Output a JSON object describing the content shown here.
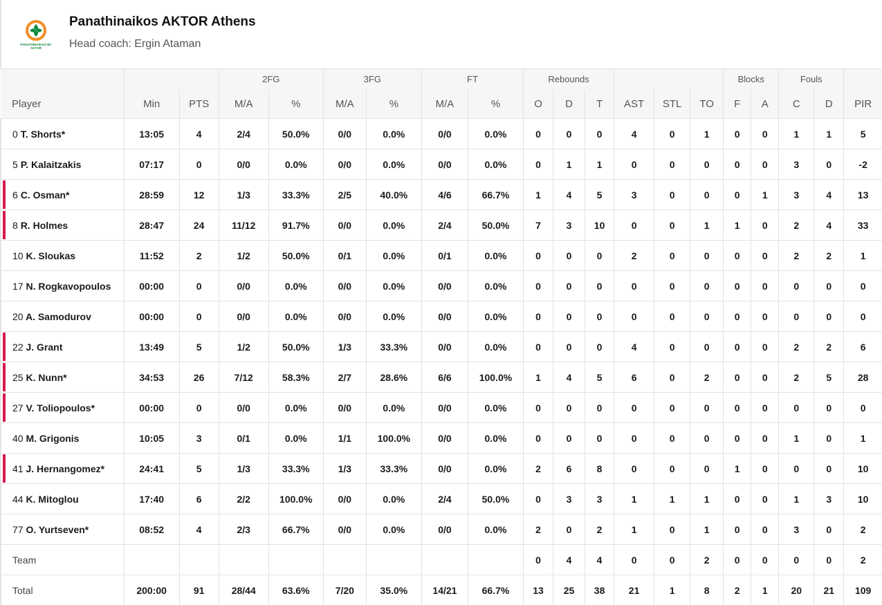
{
  "team": {
    "name": "Panathinaikos AKTOR Athens",
    "coach": "Head coach: Ergin Ataman",
    "logo_text_1": "PANATHINAIKOS BC",
    "logo_text_2": "AKTOR",
    "colors": {
      "accent": "#d7184f",
      "logo_green": "#0d8a3c",
      "logo_orange": "#f28c28"
    }
  },
  "table": {
    "groups": {
      "fg2": "2FG",
      "fg3": "3FG",
      "ft": "FT",
      "reb": "Rebounds",
      "blk": "Blocks",
      "fouls": "Fouls"
    },
    "headers": {
      "player": "Player",
      "min": "Min",
      "pts": "PTS",
      "fg2_ma": "M/A",
      "fg2_pct": "%",
      "fg3_ma": "M/A",
      "fg3_pct": "%",
      "ft_ma": "M/A",
      "ft_pct": "%",
      "o": "O",
      "d": "D",
      "t": "T",
      "ast": "AST",
      "stl": "STL",
      "to": "TO",
      "bf": "F",
      "ba": "A",
      "fc": "C",
      "fd": "D",
      "pir": "PIR"
    },
    "rows": [
      {
        "num": "0",
        "name": "T. Shorts*",
        "oncourt": false,
        "min": "13:05",
        "pts": "4",
        "fg2": "2/4",
        "fg2p": "50.0%",
        "fg3": "0/0",
        "fg3p": "0.0%",
        "ft": "0/0",
        "ftp": "0.0%",
        "o": "0",
        "d": "0",
        "t": "0",
        "ast": "4",
        "stl": "0",
        "to": "1",
        "bf": "0",
        "ba": "0",
        "fc": "1",
        "fd": "1",
        "pir": "5"
      },
      {
        "num": "5",
        "name": "P. Kalaitzakis",
        "oncourt": false,
        "min": "07:17",
        "pts": "0",
        "fg2": "0/0",
        "fg2p": "0.0%",
        "fg3": "0/0",
        "fg3p": "0.0%",
        "ft": "0/0",
        "ftp": "0.0%",
        "o": "0",
        "d": "1",
        "t": "1",
        "ast": "0",
        "stl": "0",
        "to": "0",
        "bf": "0",
        "ba": "0",
        "fc": "3",
        "fd": "0",
        "pir": "-2"
      },
      {
        "num": "6",
        "name": "C. Osman*",
        "oncourt": true,
        "min": "28:59",
        "pts": "12",
        "fg2": "1/3",
        "fg2p": "33.3%",
        "fg3": "2/5",
        "fg3p": "40.0%",
        "ft": "4/6",
        "ftp": "66.7%",
        "o": "1",
        "d": "4",
        "t": "5",
        "ast": "3",
        "stl": "0",
        "to": "0",
        "bf": "0",
        "ba": "1",
        "fc": "3",
        "fd": "4",
        "pir": "13"
      },
      {
        "num": "8",
        "name": "R. Holmes",
        "oncourt": true,
        "min": "28:47",
        "pts": "24",
        "fg2": "11/12",
        "fg2p": "91.7%",
        "fg3": "0/0",
        "fg3p": "0.0%",
        "ft": "2/4",
        "ftp": "50.0%",
        "o": "7",
        "d": "3",
        "t": "10",
        "ast": "0",
        "stl": "0",
        "to": "1",
        "bf": "1",
        "ba": "0",
        "fc": "2",
        "fd": "4",
        "pir": "33"
      },
      {
        "num": "10",
        "name": "K. Sloukas",
        "oncourt": false,
        "min": "11:52",
        "pts": "2",
        "fg2": "1/2",
        "fg2p": "50.0%",
        "fg3": "0/1",
        "fg3p": "0.0%",
        "ft": "0/1",
        "ftp": "0.0%",
        "o": "0",
        "d": "0",
        "t": "0",
        "ast": "2",
        "stl": "0",
        "to": "0",
        "bf": "0",
        "ba": "0",
        "fc": "2",
        "fd": "2",
        "pir": "1"
      },
      {
        "num": "17",
        "name": "N. Rogkavopoulos",
        "oncourt": false,
        "min": "00:00",
        "pts": "0",
        "fg2": "0/0",
        "fg2p": "0.0%",
        "fg3": "0/0",
        "fg3p": "0.0%",
        "ft": "0/0",
        "ftp": "0.0%",
        "o": "0",
        "d": "0",
        "t": "0",
        "ast": "0",
        "stl": "0",
        "to": "0",
        "bf": "0",
        "ba": "0",
        "fc": "0",
        "fd": "0",
        "pir": "0"
      },
      {
        "num": "20",
        "name": "A. Samodurov",
        "oncourt": false,
        "min": "00:00",
        "pts": "0",
        "fg2": "0/0",
        "fg2p": "0.0%",
        "fg3": "0/0",
        "fg3p": "0.0%",
        "ft": "0/0",
        "ftp": "0.0%",
        "o": "0",
        "d": "0",
        "t": "0",
        "ast": "0",
        "stl": "0",
        "to": "0",
        "bf": "0",
        "ba": "0",
        "fc": "0",
        "fd": "0",
        "pir": "0"
      },
      {
        "num": "22",
        "name": "J. Grant",
        "oncourt": true,
        "min": "13:49",
        "pts": "5",
        "fg2": "1/2",
        "fg2p": "50.0%",
        "fg3": "1/3",
        "fg3p": "33.3%",
        "ft": "0/0",
        "ftp": "0.0%",
        "o": "0",
        "d": "0",
        "t": "0",
        "ast": "4",
        "stl": "0",
        "to": "0",
        "bf": "0",
        "ba": "0",
        "fc": "2",
        "fd": "2",
        "pir": "6"
      },
      {
        "num": "25",
        "name": "K. Nunn*",
        "oncourt": true,
        "min": "34:53",
        "pts": "26",
        "fg2": "7/12",
        "fg2p": "58.3%",
        "fg3": "2/7",
        "fg3p": "28.6%",
        "ft": "6/6",
        "ftp": "100.0%",
        "o": "1",
        "d": "4",
        "t": "5",
        "ast": "6",
        "stl": "0",
        "to": "2",
        "bf": "0",
        "ba": "0",
        "fc": "2",
        "fd": "5",
        "pir": "28"
      },
      {
        "num": "27",
        "name": "V. Toliopoulos*",
        "oncourt": true,
        "min": "00:00",
        "pts": "0",
        "fg2": "0/0",
        "fg2p": "0.0%",
        "fg3": "0/0",
        "fg3p": "0.0%",
        "ft": "0/0",
        "ftp": "0.0%",
        "o": "0",
        "d": "0",
        "t": "0",
        "ast": "0",
        "stl": "0",
        "to": "0",
        "bf": "0",
        "ba": "0",
        "fc": "0",
        "fd": "0",
        "pir": "0"
      },
      {
        "num": "40",
        "name": "M. Grigonis",
        "oncourt": false,
        "min": "10:05",
        "pts": "3",
        "fg2": "0/1",
        "fg2p": "0.0%",
        "fg3": "1/1",
        "fg3p": "100.0%",
        "ft": "0/0",
        "ftp": "0.0%",
        "o": "0",
        "d": "0",
        "t": "0",
        "ast": "0",
        "stl": "0",
        "to": "0",
        "bf": "0",
        "ba": "0",
        "fc": "1",
        "fd": "0",
        "pir": "1"
      },
      {
        "num": "41",
        "name": "J. Hernangomez*",
        "oncourt": true,
        "min": "24:41",
        "pts": "5",
        "fg2": "1/3",
        "fg2p": "33.3%",
        "fg3": "1/3",
        "fg3p": "33.3%",
        "ft": "0/0",
        "ftp": "0.0%",
        "o": "2",
        "d": "6",
        "t": "8",
        "ast": "0",
        "stl": "0",
        "to": "0",
        "bf": "1",
        "ba": "0",
        "fc": "0",
        "fd": "0",
        "pir": "10"
      },
      {
        "num": "44",
        "name": "K. Mitoglou",
        "oncourt": false,
        "min": "17:40",
        "pts": "6",
        "fg2": "2/2",
        "fg2p": "100.0%",
        "fg3": "0/0",
        "fg3p": "0.0%",
        "ft": "2/4",
        "ftp": "50.0%",
        "o": "0",
        "d": "3",
        "t": "3",
        "ast": "1",
        "stl": "1",
        "to": "1",
        "bf": "0",
        "ba": "0",
        "fc": "1",
        "fd": "3",
        "pir": "10"
      },
      {
        "num": "77",
        "name": "O. Yurtseven*",
        "oncourt": false,
        "min": "08:52",
        "pts": "4",
        "fg2": "2/3",
        "fg2p": "66.7%",
        "fg3": "0/0",
        "fg3p": "0.0%",
        "ft": "0/0",
        "ftp": "0.0%",
        "o": "2",
        "d": "0",
        "t": "2",
        "ast": "1",
        "stl": "0",
        "to": "1",
        "bf": "0",
        "ba": "0",
        "fc": "3",
        "fd": "0",
        "pir": "2"
      }
    ],
    "team_row": {
      "label": "Team",
      "min": "",
      "pts": "",
      "fg2": "",
      "fg2p": "",
      "fg3": "",
      "fg3p": "",
      "ft": "",
      "ftp": "",
      "o": "0",
      "d": "4",
      "t": "4",
      "ast": "0",
      "stl": "0",
      "to": "2",
      "bf": "0",
      "ba": "0",
      "fc": "0",
      "fd": "0",
      "pir": "2"
    },
    "total_row": {
      "label": "Total",
      "min": "200:00",
      "pts": "91",
      "fg2": "28/44",
      "fg2p": "63.6%",
      "fg3": "7/20",
      "fg3p": "35.0%",
      "ft": "14/21",
      "ftp": "66.7%",
      "o": "13",
      "d": "25",
      "t": "38",
      "ast": "21",
      "stl": "1",
      "to": "8",
      "bf": "2",
      "ba": "1",
      "fc": "20",
      "fd": "21",
      "pir": "109"
    }
  }
}
